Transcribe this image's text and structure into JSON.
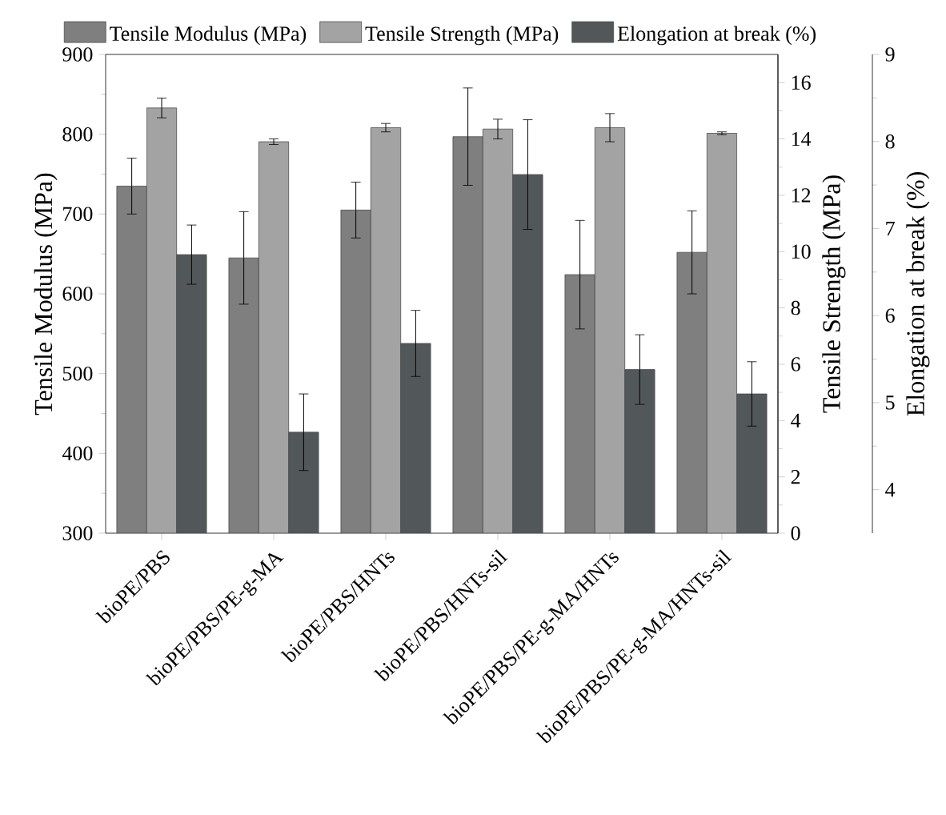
{
  "chart_data": {
    "type": "bar",
    "categories": [
      "bioPE/PBS",
      "bioPE/PBS/PE-g-MA",
      "bioPE/PBS/HNTs",
      "bioPE/PBS/HNTs-sil",
      "bioPE/PBS/PE-g-MA/HNTs",
      "bioPE/PBS/PE-g-MA/HNTs-sil"
    ],
    "series": [
      {
        "name": "Tensile Modulus (MPa)",
        "color": "#7f7f7f",
        "axis": "y",
        "values": [
          735,
          645,
          705,
          797,
          624,
          652
        ],
        "errors": [
          35,
          58,
          35,
          61,
          68,
          52
        ]
      },
      {
        "name": "Tensile Strength (MPa)",
        "color": "#a3a3a3",
        "axis": "y2",
        "values": [
          15.1,
          13.9,
          14.4,
          14.35,
          14.4,
          14.2
        ],
        "errors": [
          0.35,
          0.1,
          0.15,
          0.35,
          0.5,
          0.05
        ]
      },
      {
        "name": "Elongation at break (%)",
        "color": "#52575a",
        "axis": "y3",
        "values": [
          6.7,
          4.66,
          5.68,
          7.62,
          5.38,
          5.1
        ],
        "errors": [
          0.34,
          0.44,
          0.38,
          0.63,
          0.4,
          0.37
        ]
      }
    ],
    "ylabel": "Tensile Modulus (MPa)",
    "y2label": "Tensile Strength (MPa)",
    "y3label": "Elongation at break (%)",
    "ylim": [
      300,
      900
    ],
    "yticks": [
      300,
      400,
      500,
      600,
      700,
      800,
      900
    ],
    "y2lim": [
      0,
      17
    ],
    "y2ticks": [
      0,
      2,
      4,
      6,
      8,
      10,
      12,
      14,
      16
    ],
    "y3lim": [
      3.5,
      9
    ],
    "y3ticks": [
      4,
      5,
      6,
      7,
      8,
      9
    ],
    "legend": "top",
    "grid": false
  }
}
